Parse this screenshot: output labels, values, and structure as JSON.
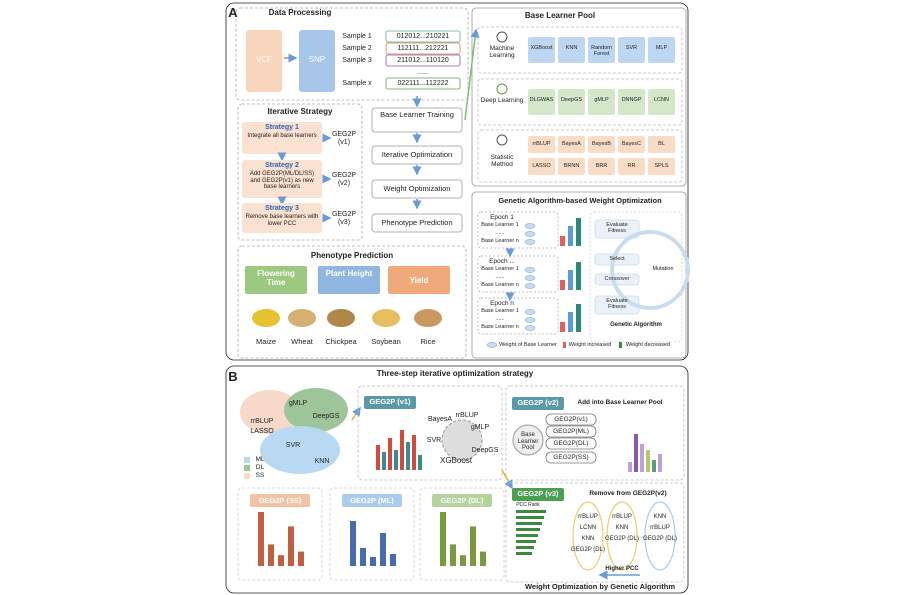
{
  "panel_a": {
    "label": "A",
    "data_processing": {
      "title": "Data Processing",
      "vcf": "VCF",
      "snp": "SNP",
      "samples": [
        {
          "name": "Sample 1",
          "seq": "012012...210221"
        },
        {
          "name": "Sample 2",
          "seq": "112111...212221"
        },
        {
          "name": "Sample 3",
          "seq": "211012...110120"
        },
        {
          "name": null,
          "seq": "......"
        },
        {
          "name": "Sample x",
          "seq": "022111...112222"
        }
      ]
    },
    "base_learner_pool": {
      "title": "Base Learner Pool",
      "groups": [
        {
          "name": "Machine Learning",
          "models": [
            "XGBoost",
            "KNN",
            "Random Forest",
            "SVR",
            "MLP"
          ]
        },
        {
          "name": "Deep Learning",
          "models": [
            "DLGWAS",
            "DeepGS",
            "gMLP",
            "DNNGP",
            "LCNN"
          ]
        },
        {
          "name": "Statistic Method",
          "models": [
            "rrBLUP",
            "BayesA",
            "BayesB",
            "BayesC",
            "BL",
            "LASSO",
            "BRNN",
            "BRR",
            "RR",
            "SPLS"
          ]
        }
      ]
    },
    "iterative_strategy": {
      "title": "Iterative Strategy",
      "strategies": [
        {
          "name": "Strategy 1",
          "text": "Integrate all base learners",
          "result": "GEG2P (v1)"
        },
        {
          "name": "Strategy 2",
          "text": "Add GEG2P(ML/DL/SS) and GEG2P(v1) as new base learners",
          "result": "GEG2P (v2)"
        },
        {
          "name": "Strategy 3",
          "text": "Remove base learners with lower PCC",
          "result": "GEG2P (v3)"
        }
      ]
    },
    "flow": [
      "Base Learner Training",
      "Iterative Optimization",
      "Weight Optimization",
      "Phenotype Prediction"
    ],
    "phenotype_prediction": {
      "title": "Phenotype Prediction",
      "traits": [
        "Flowering Time",
        "Plant Height",
        "Yield"
      ],
      "crops": [
        "Maize",
        "Wheat",
        "Chickpea",
        "Soybean",
        "Rice"
      ]
    },
    "ga": {
      "title": "Genetic Algorithm-based Weight Optimization",
      "epochs": [
        "Epoch 1",
        "Epoch ...",
        "Epoch n"
      ],
      "learners": [
        "Base Learner 1",
        "......",
        "Base Learner n"
      ],
      "steps": [
        "Evaluate Fitness",
        "Select",
        "Crossover",
        "Evaluate Fitness",
        "Mutation"
      ],
      "name": "Genetic Algorithm",
      "legend": [
        "Weight of Base Learner",
        "Weight increased",
        "Weight decreased"
      ]
    }
  },
  "panel_b": {
    "label": "B",
    "title": "Three-step iterative optimization strategy",
    "cloud_models": [
      "rrBLUP",
      "LASSO",
      "gMLP",
      "DeepGS",
      "SVR",
      "KNN"
    ],
    "legend": [
      "ML",
      "DL",
      "SS"
    ],
    "v1": {
      "title": "GEG2P (v1)",
      "models": [
        "BayesA",
        "rrBLUP",
        "gMLP",
        "SVR",
        "XGBoost",
        "DeepGS"
      ]
    },
    "v2": {
      "title": "GEG2P (v2)",
      "note": "Add into Base Learner Pool",
      "pool": "Base Learner Pool",
      "items": [
        "GEG2P(v1)",
        "GEG2P(ML)",
        "GEG2P(DL)",
        "GEG2P(SS)"
      ]
    },
    "sub": [
      "GEG2P (SS)",
      "GEG2P (ML)",
      "GEG2P (DL)"
    ],
    "v3": {
      "title": "GEG2P (v3)",
      "note": "Remove from GEG2P(v2)",
      "rank": "PCC Rank",
      "ovals": [
        [
          "rrBLUP",
          "LCNN",
          "KNN",
          "GEG2P (DL)"
        ],
        [
          "rrBLUP",
          "KNN",
          "GEG2P (DL)"
        ],
        [
          "KNN",
          "rrBLUP",
          "GEG2P (DL)"
        ]
      ],
      "higher": "Higher PCC"
    },
    "footer": "Weight Optimization by Genetic Algorithm"
  }
}
